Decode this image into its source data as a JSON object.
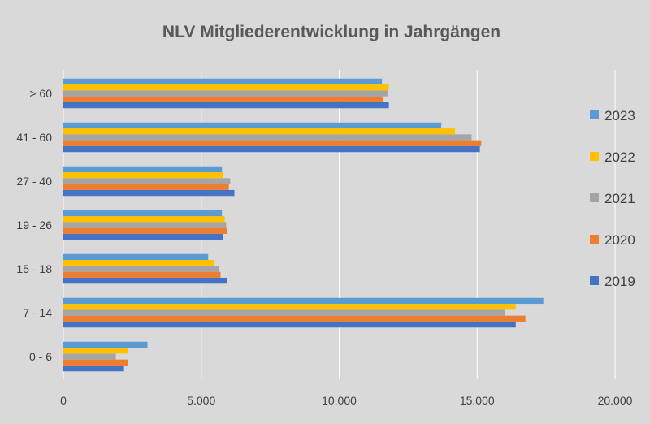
{
  "chart_data": {
    "type": "bar",
    "orientation": "horizontal",
    "title": "NLV Mitgliederentwicklung in Jahrgängen",
    "xlabel": "",
    "ylabel": "",
    "xlim": [
      0,
      20000
    ],
    "x_ticks": [
      0,
      5000,
      10000,
      15000,
      20000
    ],
    "x_tick_labels": [
      "0",
      "5.000",
      "10.000",
      "15.000",
      "20.000"
    ],
    "grid": true,
    "legend_position": "right",
    "categories": [
      "0 - 6",
      "7 - 14",
      "15 - 18",
      "19 - 26",
      "27 - 40",
      "41 - 60",
      "> 60"
    ],
    "series": [
      {
        "name": "2019",
        "color": "#4472c4",
        "values": [
          2200,
          16400,
          5950,
          5800,
          6200,
          15100,
          11800
        ]
      },
      {
        "name": "2020",
        "color": "#ed7d31",
        "values": [
          2350,
          16750,
          5700,
          5950,
          6000,
          15150,
          11600
        ]
      },
      {
        "name": "2021",
        "color": "#a5a5a5",
        "values": [
          1900,
          16000,
          5650,
          5900,
          6050,
          14800,
          11750
        ]
      },
      {
        "name": "2022",
        "color": "#ffc000",
        "values": [
          2350,
          16400,
          5450,
          5850,
          5800,
          14200,
          11800
        ]
      },
      {
        "name": "2023",
        "color": "#5b9bd5",
        "values": [
          3050,
          17400,
          5250,
          5750,
          5750,
          13700,
          11550
        ]
      }
    ],
    "legend_order": [
      "2023",
      "2022",
      "2021",
      "2020",
      "2019"
    ]
  }
}
